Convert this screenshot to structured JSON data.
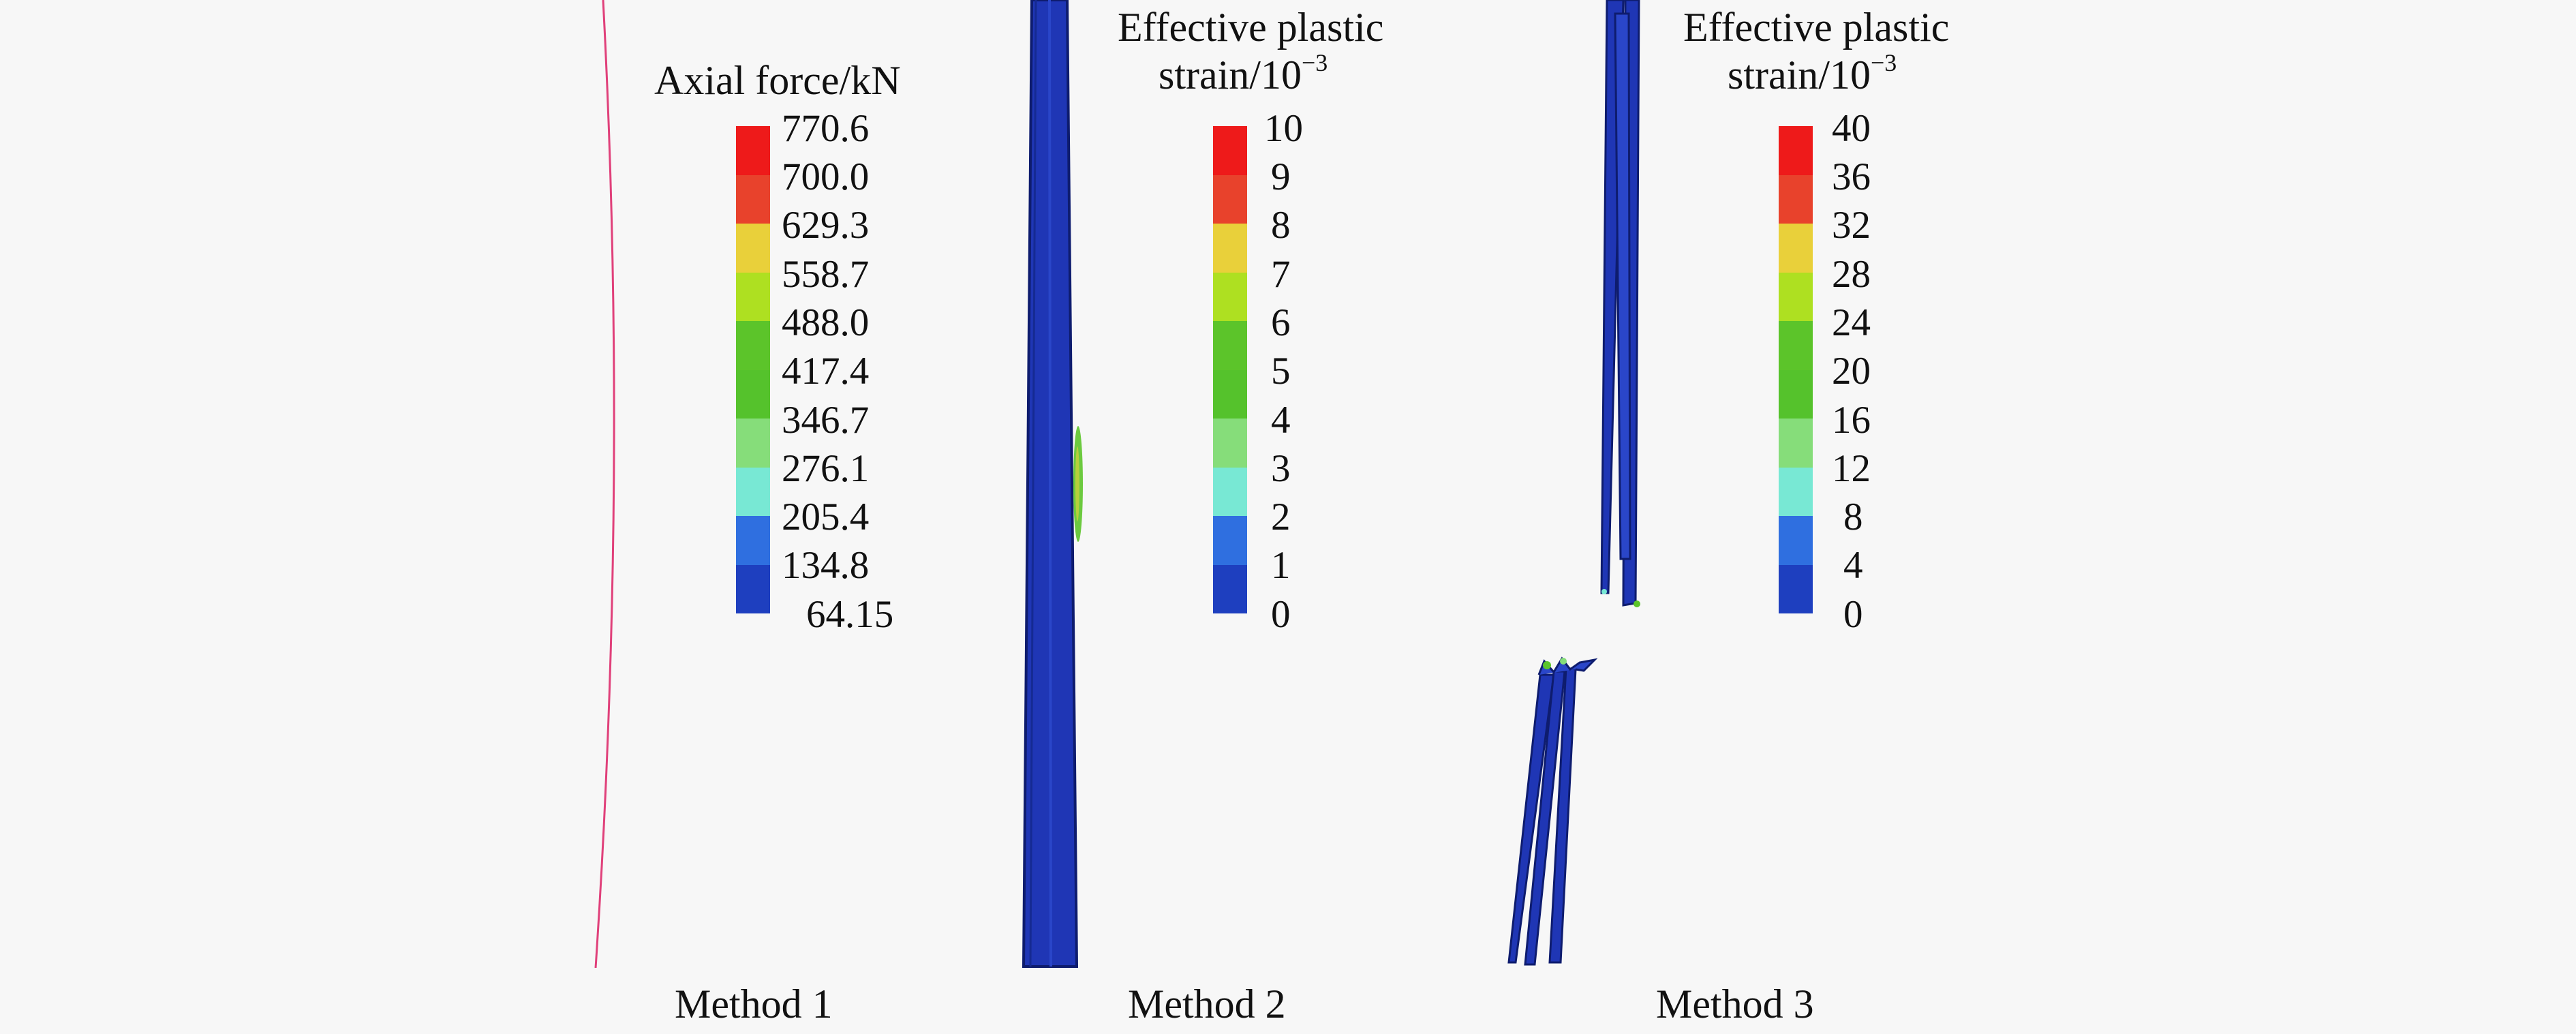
{
  "panels": [
    {
      "method_label": "Method 1",
      "legend_title": "Axial force/kN",
      "ticks": [
        "770.6",
        "700.0",
        "629.3",
        "558.7",
        "488.0",
        "417.4",
        "346.7",
        "276.1",
        "205.4",
        "134.8",
        "64.15"
      ]
    },
    {
      "method_label": "Method 2",
      "legend_title_line1": "Effective plastic",
      "legend_title_line2_base": "strain/10",
      "legend_title_line2_exp": "−3",
      "ticks": [
        "10",
        "9",
        "8",
        "7",
        "6",
        "5",
        "4",
        "3",
        "2",
        "1",
        "0"
      ]
    },
    {
      "method_label": "Method 3",
      "legend_title_line1": "Effective plastic",
      "legend_title_line2_base": "strain/10",
      "legend_title_line2_exp": "−3",
      "ticks": [
        "40",
        "36",
        "32",
        "28",
        "24",
        "20",
        "16",
        "12",
        "8",
        "4",
        "0"
      ]
    }
  ],
  "colors": {
    "contour_scale": [
      "#ee1a1a",
      "#e8422c",
      "#e9d03a",
      "#aee021",
      "#5cc42a",
      "#55c22c",
      "#86dd7a",
      "#78e8d4",
      "#2f6fe0",
      "#1e3fbf"
    ],
    "member": "#1f36b5",
    "member_edge": "#0e1c6e",
    "axial_line": "#e0407a",
    "background": "#f7f7f7"
  }
}
